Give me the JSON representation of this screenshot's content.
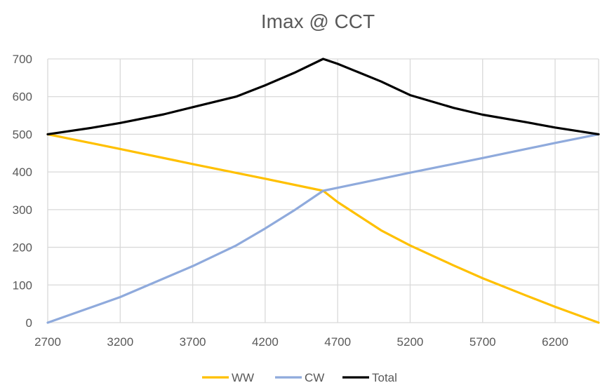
{
  "chart_data": {
    "type": "line",
    "title": "Imax @ CCT",
    "xlabel": "",
    "ylabel": "",
    "xlim": [
      2700,
      6500
    ],
    "ylim": [
      0,
      700
    ],
    "x_ticks": [
      2700,
      3200,
      3700,
      4200,
      4700,
      5200,
      5700,
      6200
    ],
    "y_ticks": [
      0,
      100,
      200,
      300,
      400,
      500,
      600,
      700
    ],
    "grid": true,
    "legend_position": "bottom",
    "series": [
      {
        "name": "WW",
        "color": "#ffc000",
        "points": [
          [
            2700,
            500
          ],
          [
            3200,
            461
          ],
          [
            3700,
            421
          ],
          [
            4200,
            382
          ],
          [
            4600,
            350
          ],
          [
            4700,
            320
          ],
          [
            5000,
            245
          ],
          [
            5200,
            205
          ],
          [
            5500,
            152
          ],
          [
            5700,
            118
          ],
          [
            6000,
            72
          ],
          [
            6200,
            42
          ],
          [
            6500,
            0
          ]
        ]
      },
      {
        "name": "CW",
        "color": "#8faadc",
        "points": [
          [
            2700,
            0
          ],
          [
            3200,
            68
          ],
          [
            3700,
            150
          ],
          [
            4000,
            205
          ],
          [
            4200,
            250
          ],
          [
            4400,
            298
          ],
          [
            4600,
            350
          ],
          [
            4700,
            358
          ],
          [
            5200,
            398
          ],
          [
            5700,
            437
          ],
          [
            6200,
            477
          ],
          [
            6500,
            500
          ]
        ]
      },
      {
        "name": "Total",
        "color": "#000000",
        "points": [
          [
            2700,
            500
          ],
          [
            3000,
            517
          ],
          [
            3200,
            530
          ],
          [
            3500,
            553
          ],
          [
            3700,
            572
          ],
          [
            4000,
            600
          ],
          [
            4200,
            630
          ],
          [
            4400,
            663
          ],
          [
            4600,
            700
          ],
          [
            4700,
            687
          ],
          [
            5000,
            640
          ],
          [
            5200,
            604
          ],
          [
            5500,
            570
          ],
          [
            5700,
            552
          ],
          [
            6000,
            532
          ],
          [
            6200,
            518
          ],
          [
            6500,
            500
          ]
        ]
      }
    ]
  }
}
